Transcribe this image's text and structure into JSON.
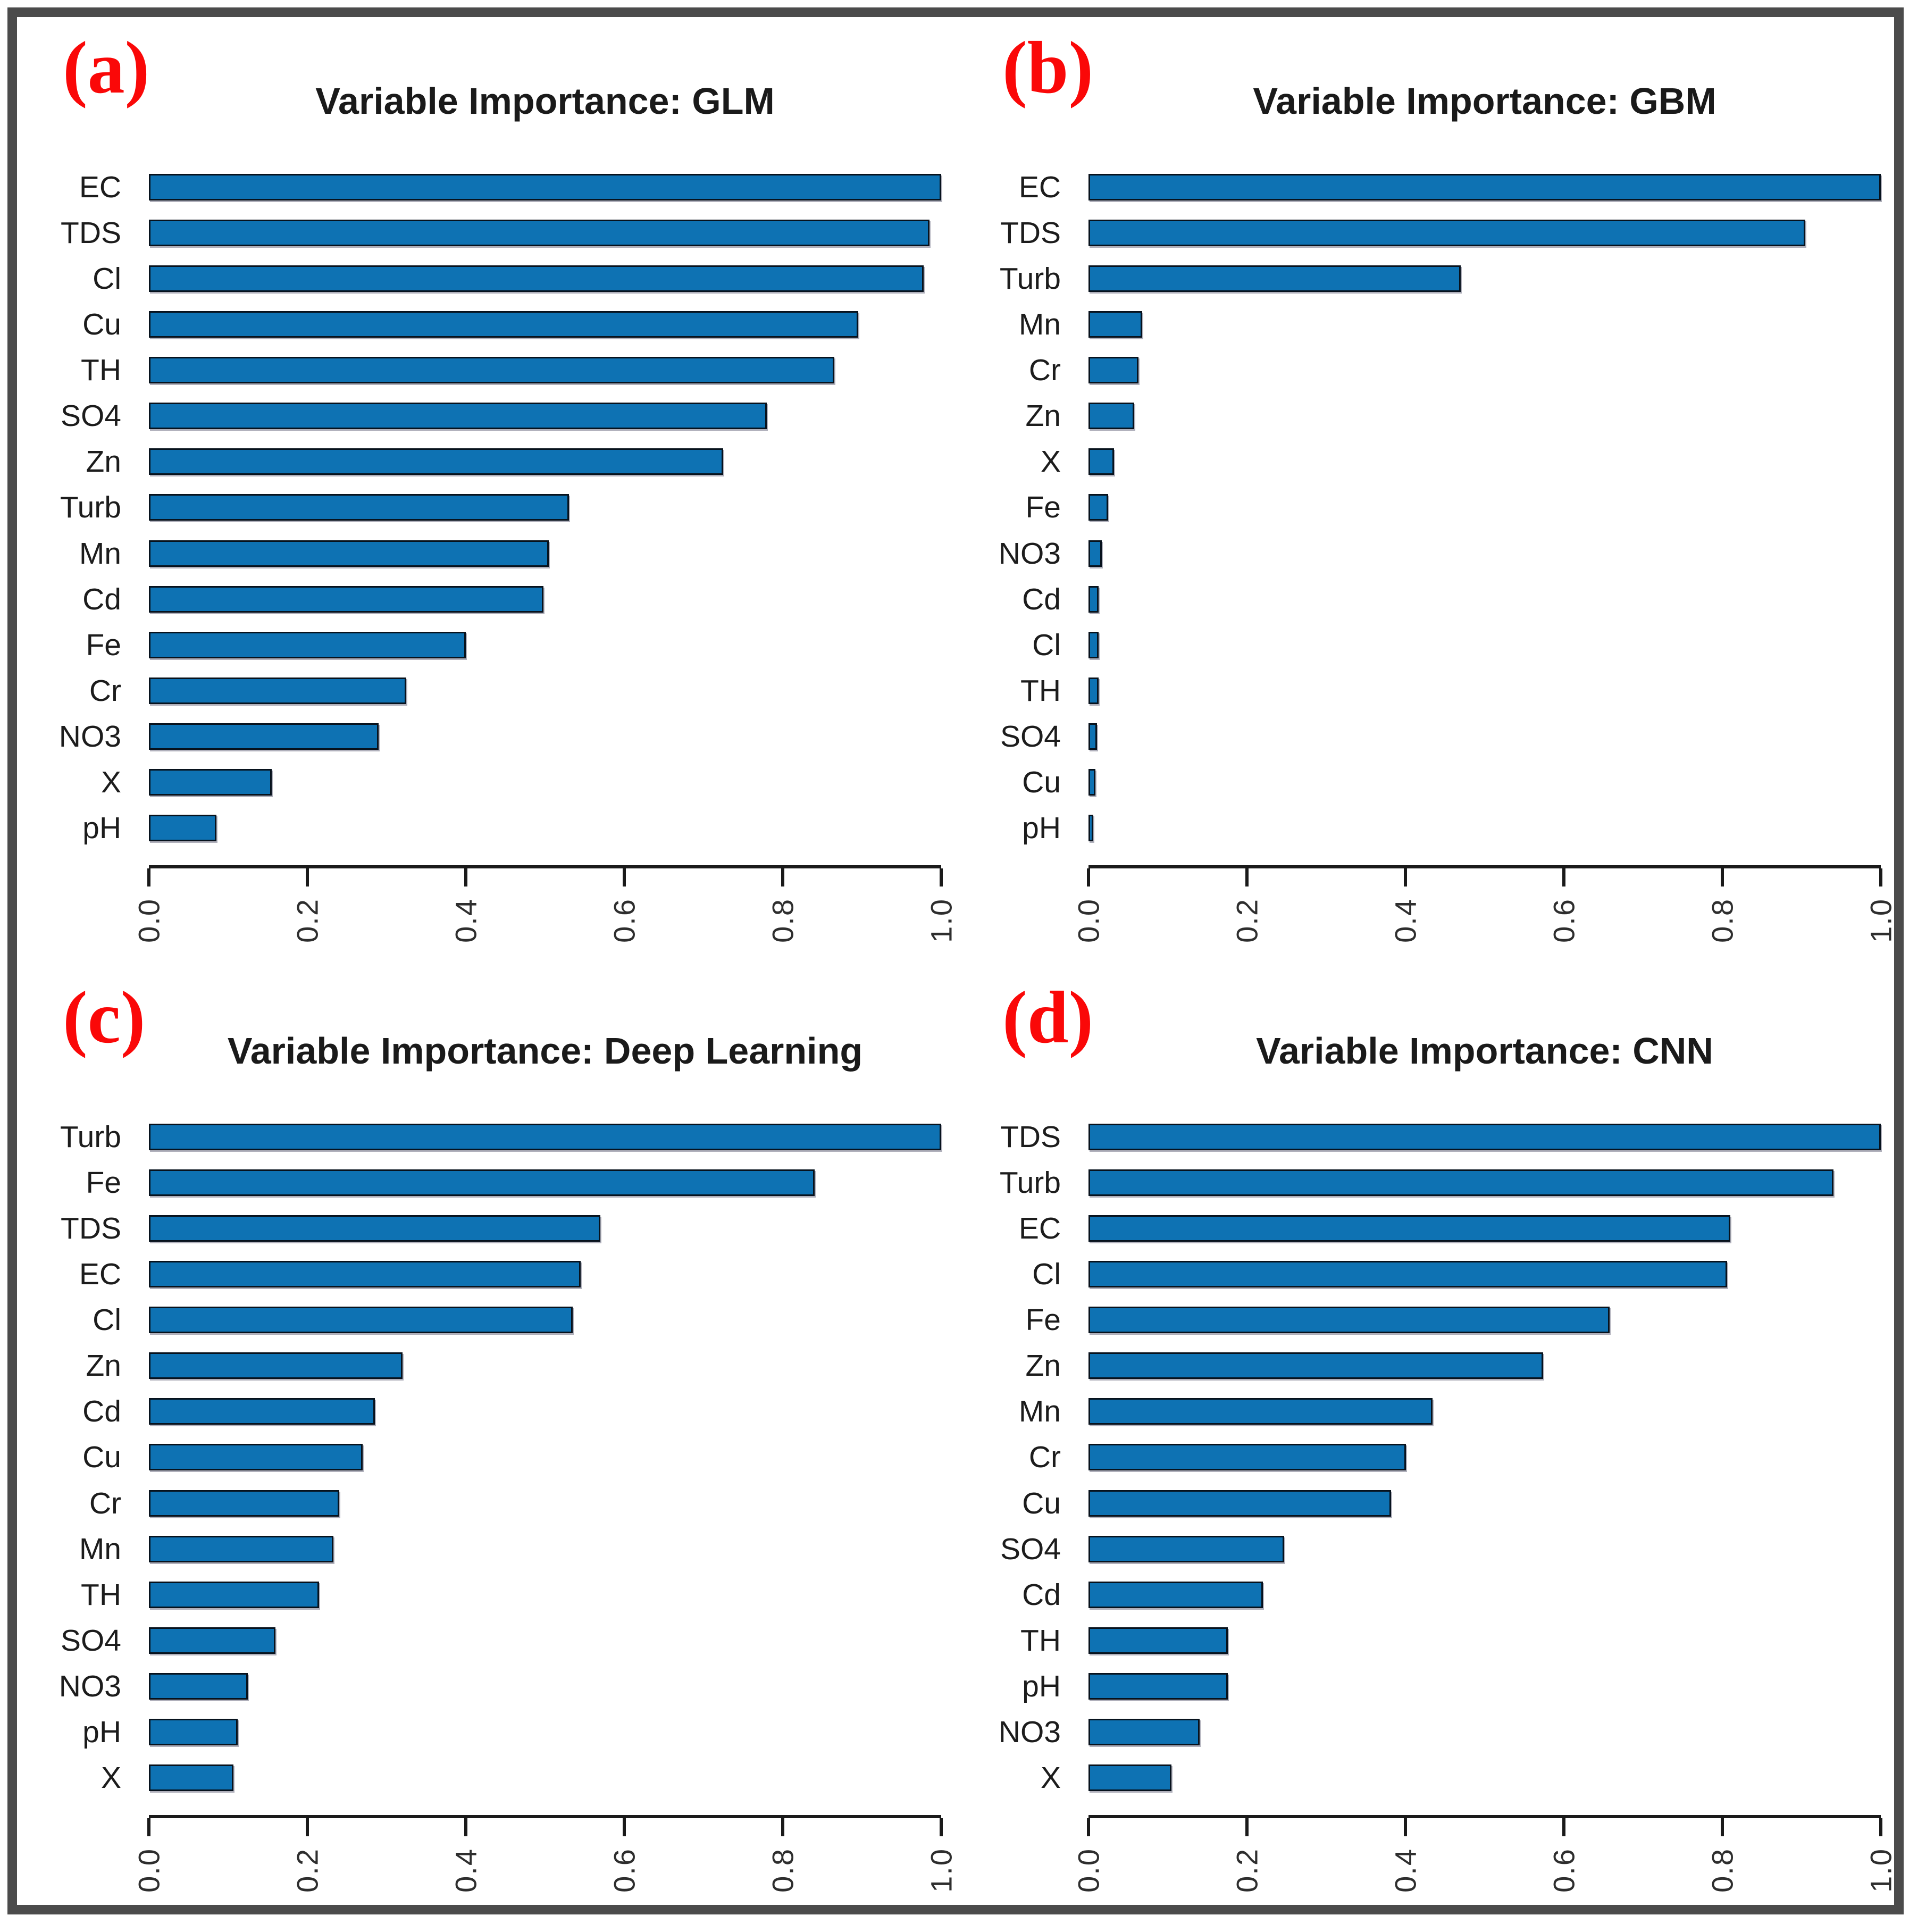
{
  "figure": {
    "border_color": "#4b4b4b",
    "bar_color": "#0E72B3",
    "panel_letter_color": "#fa0808"
  },
  "chart_data": [
    {
      "type": "bar",
      "orientation": "horizontal",
      "panel_label": "(a)",
      "title": "Variable Importance: GLM",
      "xlim": [
        0,
        1
      ],
      "xticks": [
        "0.0",
        "0.2",
        "0.4",
        "0.6",
        "0.8",
        "1.0"
      ],
      "grid": false,
      "categories": [
        "EC",
        "TDS",
        "Cl",
        "Cu",
        "TH",
        "SO4",
        "Zn",
        "Turb",
        "Mn",
        "Cd",
        "Fe",
        "Cr",
        "NO3",
        "X",
        "pH"
      ],
      "values": [
        1.0,
        0.985,
        0.978,
        0.895,
        0.865,
        0.78,
        0.725,
        0.53,
        0.505,
        0.498,
        0.4,
        0.325,
        0.29,
        0.155,
        0.085
      ]
    },
    {
      "type": "bar",
      "orientation": "horizontal",
      "panel_label": "(b)",
      "title": "Variable Importance: GBM",
      "xlim": [
        0,
        1
      ],
      "xticks": [
        "0.0",
        "0.2",
        "0.4",
        "0.6",
        "0.8",
        "1.0"
      ],
      "grid": false,
      "categories": [
        "EC",
        "TDS",
        "Turb",
        "Mn",
        "Cr",
        "Zn",
        "X",
        "Fe",
        "NO3",
        "Cd",
        "Cl",
        "TH",
        "SO4",
        "Cu",
        "pH"
      ],
      "values": [
        1.0,
        0.905,
        0.47,
        0.068,
        0.063,
        0.058,
        0.032,
        0.025,
        0.017,
        0.013,
        0.013,
        0.013,
        0.011,
        0.009,
        0.006
      ]
    },
    {
      "type": "bar",
      "orientation": "horizontal",
      "panel_label": "(c)",
      "title": "Variable Importance: Deep Learning",
      "xlim": [
        0,
        1
      ],
      "xticks": [
        "0.0",
        "0.2",
        "0.4",
        "0.6",
        "0.8",
        "1.0"
      ],
      "grid": false,
      "categories": [
        "Turb",
        "Fe",
        "TDS",
        "EC",
        "Cl",
        "Zn",
        "Cd",
        "Cu",
        "Cr",
        "Mn",
        "TH",
        "SO4",
        "NO3",
        "pH",
        "X"
      ],
      "values": [
        1.0,
        0.84,
        0.57,
        0.545,
        0.535,
        0.32,
        0.285,
        0.27,
        0.24,
        0.233,
        0.215,
        0.16,
        0.125,
        0.112,
        0.107
      ]
    },
    {
      "type": "bar",
      "orientation": "horizontal",
      "panel_label": "(d)",
      "title": "Variable Importance: CNN",
      "xlim": [
        0,
        1
      ],
      "xticks": [
        "0.0",
        "0.2",
        "0.4",
        "0.6",
        "0.8",
        "1.0"
      ],
      "grid": false,
      "categories": [
        "TDS",
        "Turb",
        "EC",
        "Cl",
        "Fe",
        "Zn",
        "Mn",
        "Cr",
        "Cu",
        "SO4",
        "Cd",
        "TH",
        "pH",
        "NO3",
        "X"
      ],
      "values": [
        1.0,
        0.94,
        0.81,
        0.806,
        0.658,
        0.574,
        0.434,
        0.401,
        0.382,
        0.247,
        0.22,
        0.176,
        0.176,
        0.14,
        0.105
      ]
    }
  ]
}
